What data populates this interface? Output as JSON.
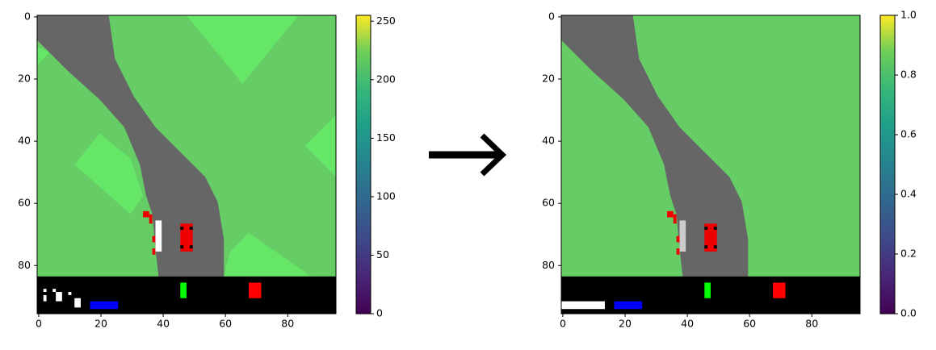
{
  "chart_data": [
    {
      "type": "image",
      "colormap": "viridis",
      "xlim": [
        -0.5,
        95.5
      ],
      "ylim": [
        95.5,
        -0.5
      ],
      "xticks": [
        0,
        20,
        40,
        60,
        80
      ],
      "yticks": [
        0,
        20,
        40,
        60,
        80
      ],
      "colorbar": {
        "lim": [
          0,
          255
        ],
        "ticks": [
          0,
          50,
          100,
          150,
          200,
          250
        ]
      }
    },
    {
      "type": "image",
      "colormap": "viridis",
      "xlim": [
        -0.5,
        95.5
      ],
      "ylim": [
        95.5,
        -0.5
      ],
      "xticks": [
        0,
        20,
        40,
        60,
        80
      ],
      "yticks": [
        0,
        20,
        40,
        60,
        80
      ],
      "colorbar": {
        "lim": [
          0,
          1
        ],
        "ticks": [
          {
            "value": 0,
            "label": "0.0"
          },
          {
            "value": 0.2,
            "label": "0.2"
          },
          {
            "value": 0.4,
            "label": "0.4"
          },
          {
            "value": 0.6,
            "label": "0.6"
          },
          {
            "value": 0.8,
            "label": "0.8"
          },
          {
            "value": 1,
            "label": "1.0"
          }
        ]
      }
    }
  ]
}
